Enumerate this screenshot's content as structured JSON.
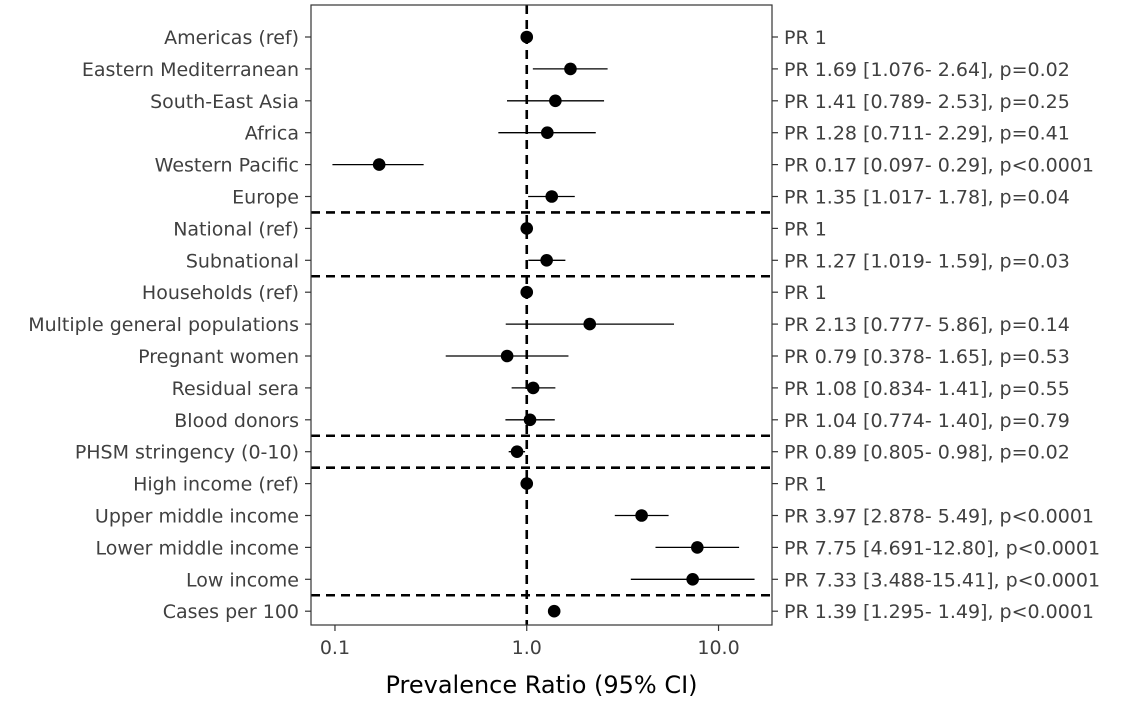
{
  "chart_data": {
    "type": "forest",
    "xlabel": "Prevalence Ratio (95% CI)",
    "x_scale": "log10",
    "xlim": [
      0.075,
      19
    ],
    "x_ticks": [
      0.1,
      1.0,
      10.0
    ],
    "x_tick_labels": [
      "0.1",
      "1.0",
      "10.0"
    ],
    "reference_line_x": 1.0,
    "grid": false,
    "rows": [
      {
        "label": "Americas (ref)",
        "pr": 1,
        "lo": null,
        "hi": null,
        "text": "PR 1"
      },
      {
        "label": "Eastern Mediterranean",
        "pr": 1.69,
        "lo": 1.076,
        "hi": 2.64,
        "text": "PR 1.69 [1.076- 2.64], p=0.02"
      },
      {
        "label": "South-East Asia",
        "pr": 1.41,
        "lo": 0.789,
        "hi": 2.53,
        "text": "PR 1.41 [0.789- 2.53], p=0.25"
      },
      {
        "label": "Africa",
        "pr": 1.28,
        "lo": 0.711,
        "hi": 2.29,
        "text": "PR 1.28 [0.711- 2.29], p=0.41"
      },
      {
        "label": "Western Pacific",
        "pr": 0.17,
        "lo": 0.097,
        "hi": 0.29,
        "text": "PR 0.17 [0.097- 0.29], p<0.0001"
      },
      {
        "label": "Europe",
        "pr": 1.35,
        "lo": 1.017,
        "hi": 1.78,
        "text": "PR 1.35 [1.017- 1.78], p=0.04"
      },
      {
        "label": "National (ref)",
        "pr": 1,
        "lo": null,
        "hi": null,
        "text": "PR 1"
      },
      {
        "label": "Subnational",
        "pr": 1.27,
        "lo": 1.019,
        "hi": 1.59,
        "text": "PR 1.27 [1.019- 1.59], p=0.03"
      },
      {
        "label": "Households (ref)",
        "pr": 1,
        "lo": null,
        "hi": null,
        "text": "PR 1"
      },
      {
        "label": "Multiple general populations",
        "pr": 2.13,
        "lo": 0.777,
        "hi": 5.86,
        "text": "PR 2.13 [0.777- 5.86], p=0.14"
      },
      {
        "label": "Pregnant women",
        "pr": 0.79,
        "lo": 0.378,
        "hi": 1.65,
        "text": "PR 0.79 [0.378- 1.65], p=0.53"
      },
      {
        "label": "Residual sera",
        "pr": 1.08,
        "lo": 0.834,
        "hi": 1.41,
        "text": "PR 1.08 [0.834- 1.41], p=0.55"
      },
      {
        "label": "Blood donors",
        "pr": 1.04,
        "lo": 0.774,
        "hi": 1.4,
        "text": "PR 1.04 [0.774- 1.40], p=0.79"
      },
      {
        "label": "PHSM stringency (0-10)",
        "pr": 0.89,
        "lo": 0.805,
        "hi": 0.98,
        "text": "PR 0.89 [0.805- 0.98], p=0.02"
      },
      {
        "label": "High income (ref)",
        "pr": 1,
        "lo": null,
        "hi": null,
        "text": "PR 1"
      },
      {
        "label": "Upper middle income",
        "pr": 3.97,
        "lo": 2.878,
        "hi": 5.49,
        "text": "PR 3.97 [2.878- 5.49], p<0.0001"
      },
      {
        "label": "Lower middle income",
        "pr": 7.75,
        "lo": 4.691,
        "hi": 12.8,
        "text": "PR 7.75 [4.691-12.80], p<0.0001"
      },
      {
        "label": "Low income",
        "pr": 7.33,
        "lo": 3.488,
        "hi": 15.41,
        "text": "PR 7.33 [3.488-15.41], p<0.0001"
      },
      {
        "label": "Cases per 100",
        "pr": 1.39,
        "lo": 1.295,
        "hi": 1.49,
        "text": "PR 1.39 [1.295- 1.49], p<0.0001"
      }
    ],
    "group_separators_after_row": [
      5,
      7,
      12,
      13,
      17
    ]
  },
  "colors": {
    "point": "#000000",
    "line": "#000000",
    "panel_border": "#333333",
    "text": "#404040"
  }
}
